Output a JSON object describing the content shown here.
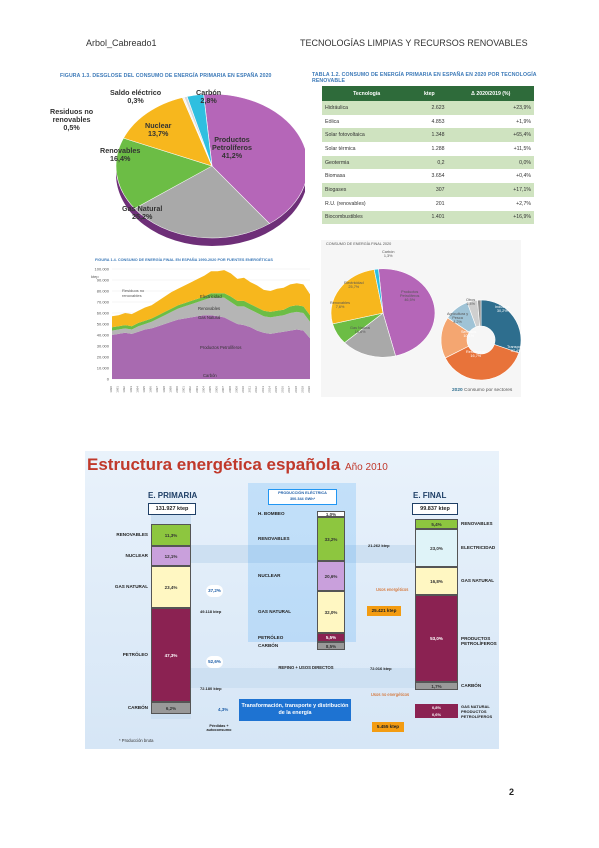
{
  "header": {
    "left": "Arbol_Cabreado1",
    "right": "TECNOLOGÍAS LIMPIAS Y RECURSOS RENOVABLES"
  },
  "page_number": "2",
  "figure13": {
    "title": "FIGURA 1.3. DESGLOSE DEL CONSUMO DE ENERGÍA PRIMARIA EN ESPAÑA 2020",
    "chart_data": {
      "type": "pie",
      "labels": [
        "Productos Petrolíferos",
        "Gas Natural",
        "Renovables",
        "Nuclear",
        "Saldo eléctrico",
        "Residuos no renovables",
        "Carbón"
      ],
      "values": [
        41.2,
        25.2,
        16.4,
        13.7,
        0.3,
        0.5,
        2.8
      ],
      "colors": [
        "#b566b8",
        "#a9a9a9",
        "#6cbd45",
        "#f7b71d",
        "#f2f2f2",
        "#d9d9d9",
        "#2fbfe0"
      ]
    },
    "labels": {
      "petroliferos": [
        "Productos",
        "Petrolíferos",
        "41,2%"
      ],
      "gas": [
        "Gas Natural",
        "25,2%"
      ],
      "renovables": [
        "Renovables",
        "16,4%"
      ],
      "nuclear": [
        "Nuclear",
        "13,7%"
      ],
      "saldo": [
        "Saldo eléctrico",
        "0,3%"
      ],
      "residuos": [
        "Residuos no",
        "renovables",
        "0,5%"
      ],
      "carbon": [
        "Carbón",
        "2,8%"
      ]
    }
  },
  "table13": {
    "title": "TABLA 1.2. CONSUMO DE ENERGÍA PRIMARIA EN ESPAÑA EN 2020 POR TECNOLOGÍA RENOVABLE",
    "columns": [
      "Tecnología",
      "ktep",
      "Δ 2020/2019 (%)"
    ],
    "rows": [
      [
        "Hidráulica",
        "2.623",
        "+23,9%"
      ],
      [
        "Eólica",
        "4.853",
        "+1,9%"
      ],
      [
        "Solar fotovoltaica",
        "1.348",
        "+65,4%"
      ],
      [
        "Solar térmica",
        "1.288",
        "+11,5%"
      ],
      [
        "Geotermia",
        "0,2",
        "0,0%"
      ],
      [
        "Biomasa",
        "3.654",
        "+0,4%"
      ],
      [
        "Biogases",
        "307",
        "+17,1%"
      ],
      [
        "R.U. (renovables)",
        "201",
        "+2,7%"
      ],
      [
        "Biocombustibles",
        "1.401",
        "+16,9%"
      ]
    ]
  },
  "figure14": {
    "title": "FIGURA 1.4. CONSUMO DE ENERGÍA FINAL EN ESPAÑA 1990-2020 POR FUENTES ENERGÉTICAS",
    "y_ticks": [
      "100.000",
      "90.000",
      "80.000",
      "70.000",
      "60.000",
      "50.000",
      "40.000",
      "30.000",
      "20.000",
      "10.000",
      "0"
    ],
    "unit": "ktep",
    "series_labels": [
      "Electricidad",
      "Renovables",
      "Gas Natural",
      "Productos Petrolíferos",
      "Carbón"
    ],
    "note": [
      "Residuos no",
      "renovables"
    ],
    "years": [
      "1990",
      "1991",
      "1992",
      "1993",
      "1994",
      "1995",
      "1996",
      "1997",
      "1998",
      "1999",
      "2000",
      "2001",
      "2002",
      "2003",
      "2004",
      "2005",
      "2006",
      "2007",
      "2008",
      "2009",
      "2010",
      "2011",
      "2012",
      "2013",
      "2014",
      "2015",
      "2016",
      "2017",
      "2018",
      "2019",
      "2020"
    ]
  },
  "figure15": {
    "title": "CONSUMO DE ENERGÍA FINAL 2020",
    "chart_data": {
      "type": "pie",
      "labels": [
        "Productos Petrolíferos",
        "Gas Natural",
        "Renovables",
        "Electricidad",
        "Carbón"
      ],
      "values": [
        46.5,
        16.8,
        7.6,
        25.7,
        1.3
      ],
      "colors": [
        "#b566b8",
        "#a9a9a9",
        "#6cbd45",
        "#f7b71d",
        "#2fbfe0"
      ]
    },
    "labels": {
      "carbon": [
        "Carbón",
        "1,3%"
      ],
      "electricidad": [
        "Electricidad",
        "25,7%"
      ],
      "renovables": [
        "Renovables",
        "7,6%"
      ],
      "petroliferos": [
        "Productos",
        "Petrolíferos",
        "46,5%"
      ],
      "gas": [
        "Gas Natural",
        "16,8%"
      ]
    },
    "sector_chart": {
      "type": "pie",
      "labels": [
        "Industria",
        "Transporte",
        "Residencial",
        "Servicios",
        "Agricultura y Pesca",
        "Otros"
      ],
      "values": [
        30.2,
        37.4,
        16.7,
        10.1,
        4.2,
        1.4
      ],
      "colors": [
        "#2e6e8e",
        "#e8733a",
        "#f4a671",
        "#9fc3d6",
        "#cfcfcf",
        "#8f8f8f"
      ]
    },
    "sector_labels": {
      "otros": [
        "Otros",
        "1,4%"
      ],
      "agricultura": [
        "Agricultura y",
        "Pesca",
        "4,2%"
      ],
      "servicios": [
        "Servicios",
        "10,1%"
      ],
      "residencial": [
        "Residencial",
        "16,7%"
      ],
      "transporte": [
        "Transporte",
        "37,4%"
      ],
      "industria": [
        "Industria",
        "30,2%"
      ]
    },
    "caption_year": "2020",
    "caption_text": "Consumo por sectores"
  },
  "estructura": {
    "title": "Estructura energética española",
    "year": "Año 2010",
    "primaria": {
      "heading": "E. PRIMARIA",
      "total": "131.927 ktep",
      "segments": [
        {
          "label": "RENOVABLES",
          "value": "11,3%",
          "color": "#8dc63f"
        },
        {
          "label": "NUCLEAR",
          "value": "12,1%",
          "color": "#c9a0dc"
        },
        {
          "label": "GAS NATURAL",
          "value": "23,4%",
          "color": "#fff7c2"
        },
        {
          "label": "PETRÓLEO",
          "value": "47,3%",
          "color": "#8b2252"
        },
        {
          "label": "CARBÓN",
          "value": "6,2%",
          "color": "#999999"
        }
      ]
    },
    "electrica": {
      "heading": "PRODUCCIÓN ELÉCTRICA",
      "subheading": "300.344 GWh*",
      "segments": [
        {
          "label": "H. BOMBEO",
          "value": "1,0%",
          "color": "#ffffff"
        },
        {
          "label": "RENOVABLES",
          "value": "33,2%",
          "color": "#8dc63f"
        },
        {
          "label": "NUCLEAR",
          "value": "20,6%",
          "color": "#c9a0dc"
        },
        {
          "label": "GAS NATURAL",
          "value": "32,0%",
          "color": "#fff7c2"
        },
        {
          "label": "PETRÓLEO",
          "value": "5,5%",
          "color": "#8b2252"
        },
        {
          "label": "CARBÓN",
          "value": "8,5%",
          "color": "#999999"
        }
      ]
    },
    "final": {
      "heading": "E. FINAL",
      "total": "99.837 ktep",
      "segments": [
        {
          "label": "RENOVABLES",
          "value": "5,4%",
          "color": "#8dc63f"
        },
        {
          "label": "ELECTRICIDAD",
          "value": "23,0%",
          "color": "#dff3f8"
        },
        {
          "label": "GAS NATURAL",
          "value": "16,8%",
          "color": "#fff7c2"
        },
        {
          "label": "PRODUCTOS PETROLÍFEROS",
          "value": "53,0%",
          "color": "#8b2252"
        },
        {
          "label": "CARBÓN",
          "value": "1,7%",
          "color": "#999999"
        }
      ],
      "extra": {
        "label": "GAS NATURAL PRODUCTOS PETROLÍFEROS",
        "values": [
          "0,8%",
          "0,6%"
        ]
      }
    },
    "flows": {
      "to_elec_pct": "37,2%",
      "to_elec_ktep": "49.118 ktep",
      "elec_out": "21.262 ktep",
      "losses_label": "Usos energéticos",
      "losses_value": "25.421 ktep",
      "refine_pct": "52,6%",
      "refine_ktep": "72.180 ktep",
      "refine_label": "REFINO + USOS DIRECTOS",
      "direct_out": "72.016 ktep",
      "no_energy_label": "Usos no energéticos",
      "no_energy_value": "5.455 ktep",
      "stock_pct": "4,3%",
      "stock_label": "Pérdidas + autoconsumo",
      "transform_label": "Transformación, transporte y distribución de la energía",
      "footnote": "* Producción bruta"
    }
  }
}
